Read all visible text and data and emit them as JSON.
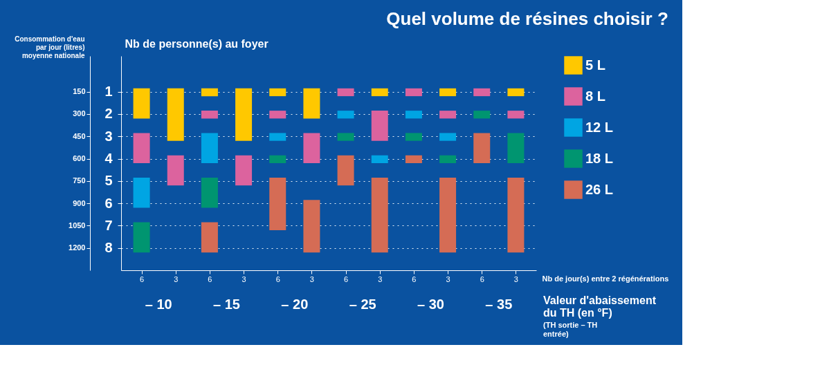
{
  "chart_data": {
    "type": "bar",
    "title": "Quel volume de résines choisir ?",
    "xlabel": "Nb de jour(s) entre 2 régénérations",
    "ylabel": "Nb de personne(s) au foyer",
    "y2label": "Consommation d'eau par jour (litres) moyenne nationale",
    "categories": [
      "6",
      "3",
      "6",
      "3",
      "6",
      "3",
      "6",
      "3",
      "6",
      "3",
      "6",
      "3"
    ],
    "series": [
      {
        "name": "5 L",
        "color": "#ffc800",
        "base": [
          0.85,
          0.85,
          0.85,
          0.85,
          0.85,
          0.85,
          null,
          0.85,
          null,
          0.85,
          null,
          0.85
        ],
        "values": [
          1.35,
          2.35,
          0.35,
          2.35,
          0.35,
          1.35,
          null,
          0.35,
          null,
          0.35,
          null,
          0.35
        ]
      },
      {
        "name": "8 L",
        "color": "#dc639e",
        "base": [
          2.85,
          3.85,
          1.85,
          3.85,
          1.85,
          2.85,
          0.85,
          1.85,
          0.85,
          1.85,
          0.85,
          1.85
        ],
        "values": [
          1.35,
          1.35,
          0.35,
          1.35,
          0.35,
          1.35,
          0.35,
          1.35,
          0.35,
          0.35,
          0.35,
          0.35
        ]
      },
      {
        "name": "12 L",
        "color": "#00a5e3",
        "base": [
          4.85,
          null,
          2.85,
          null,
          2.85,
          null,
          1.85,
          3.85,
          1.85,
          2.85,
          null,
          null
        ],
        "values": [
          1.35,
          null,
          1.35,
          null,
          0.35,
          null,
          0.35,
          0.35,
          0.35,
          0.35,
          null,
          null
        ]
      },
      {
        "name": "18 L",
        "color": "#009570",
        "base": [
          6.85,
          null,
          4.85,
          null,
          3.85,
          null,
          2.85,
          null,
          2.85,
          3.85,
          1.85,
          2.85
        ],
        "values": [
          1.35,
          null,
          1.35,
          null,
          0.35,
          null,
          0.35,
          null,
          0.35,
          0.35,
          0.35,
          1.35
        ]
      },
      {
        "name": "26 L",
        "color": "#d56c55",
        "base": [
          null,
          null,
          6.85,
          null,
          4.85,
          5.85,
          3.85,
          4.85,
          3.85,
          4.85,
          2.85,
          4.85
        ],
        "values": [
          null,
          null,
          1.35,
          null,
          2.35,
          2.35,
          1.35,
          3.35,
          0.35,
          3.35,
          1.35,
          3.35
        ]
      }
    ],
    "ylim": [
      9,
      -0.6
    ],
    "yticks": [
      1,
      2,
      3,
      4,
      5,
      6,
      7,
      8
    ],
    "y2lim": [
      1350,
      -90
    ],
    "y2ticks": [
      150,
      300,
      450,
      600,
      750,
      900,
      1050,
      1200
    ],
    "grid": "y",
    "legend": "right",
    "annotations": [
      "– 10",
      "– 15",
      "– 20",
      "– 25",
      "– 30",
      "– 35",
      "Valeur d'abaissement du TH (en °F)",
      "(TH sortie – TH entrée)"
    ]
  }
}
